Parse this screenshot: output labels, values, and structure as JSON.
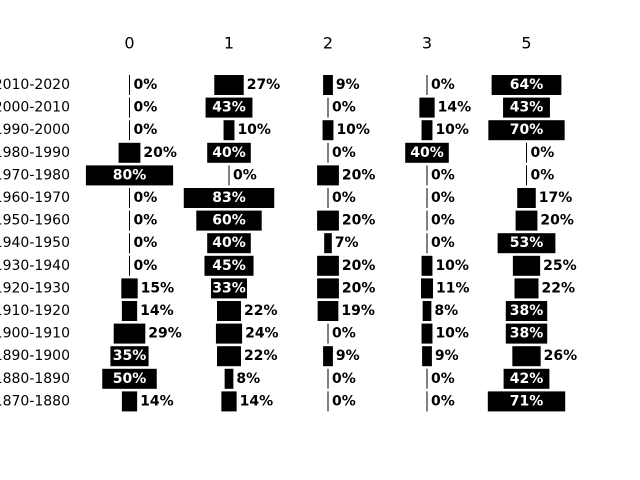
{
  "chart_data": {
    "type": "bar",
    "title": "",
    "xlabel": "",
    "ylabel": "",
    "columns": [
      "0",
      "1",
      "2",
      "3",
      "5"
    ],
    "categories": [
      "2010-2020",
      "2000-2010",
      "1990-2000",
      "1980-1990",
      "1970-1980",
      "1960-1970",
      "1950-1960",
      "1940-1950",
      "1930-1940",
      "1920-1930",
      "1910-1920",
      "1900-1910",
      "1890-1900",
      "1880-1890",
      "1870-1880"
    ],
    "series": [
      {
        "values": [
          0,
          0,
          0,
          20,
          80,
          0,
          0,
          0,
          0,
          15,
          14,
          29,
          35,
          50,
          14
        ]
      },
      {
        "values": [
          27,
          43,
          10,
          40,
          0,
          83,
          60,
          40,
          45,
          33,
          22,
          24,
          22,
          8,
          14
        ]
      },
      {
        "values": [
          9,
          0,
          10,
          0,
          20,
          0,
          20,
          7,
          20,
          20,
          19,
          0,
          9,
          0,
          0
        ]
      },
      {
        "values": [
          0,
          14,
          10,
          40,
          0,
          0,
          0,
          0,
          10,
          11,
          8,
          10,
          9,
          0,
          0
        ]
      },
      {
        "values": [
          64,
          43,
          70,
          0,
          0,
          17,
          20,
          53,
          25,
          22,
          38,
          38,
          26,
          42,
          71
        ]
      }
    ],
    "value_suffix": "%",
    "bar_color": "#000000",
    "grid": false,
    "legend": "none"
  }
}
